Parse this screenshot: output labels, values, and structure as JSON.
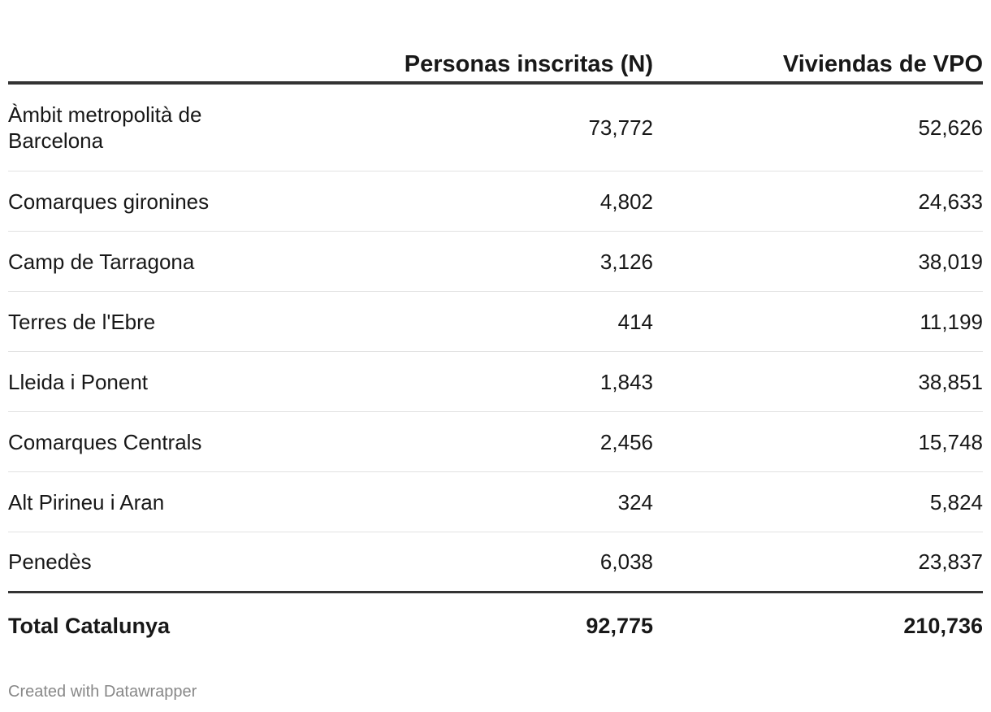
{
  "chart_data": {
    "type": "table",
    "columns": [
      "",
      "Personas inscritas (N)",
      "Viviendas de VPO"
    ],
    "rows": [
      {
        "region": "Àmbit metropolità de Barcelona",
        "personas": "73,772",
        "viviendas": "52,626"
      },
      {
        "region": "Comarques gironines",
        "personas": "4,802",
        "viviendas": "24,633"
      },
      {
        "region": "Camp de Tarragona",
        "personas": "3,126",
        "viviendas": "38,019"
      },
      {
        "region": "Terres de l'Ebre",
        "personas": "414",
        "viviendas": "11,199"
      },
      {
        "region": "Lleida i Ponent",
        "personas": "1,843",
        "viviendas": "38,851"
      },
      {
        "region": "Comarques Centrals",
        "personas": "2,456",
        "viviendas": "15,748"
      },
      {
        "region": "Alt Pirineu i Aran",
        "personas": "324",
        "viviendas": "5,824"
      },
      {
        "region": "Penedès",
        "personas": "6,038",
        "viviendas": "23,837"
      }
    ],
    "total": {
      "region": "Total Catalunya",
      "personas": "92,775",
      "viviendas": "210,736"
    }
  },
  "footer": {
    "credit": "Created with Datawrapper"
  }
}
